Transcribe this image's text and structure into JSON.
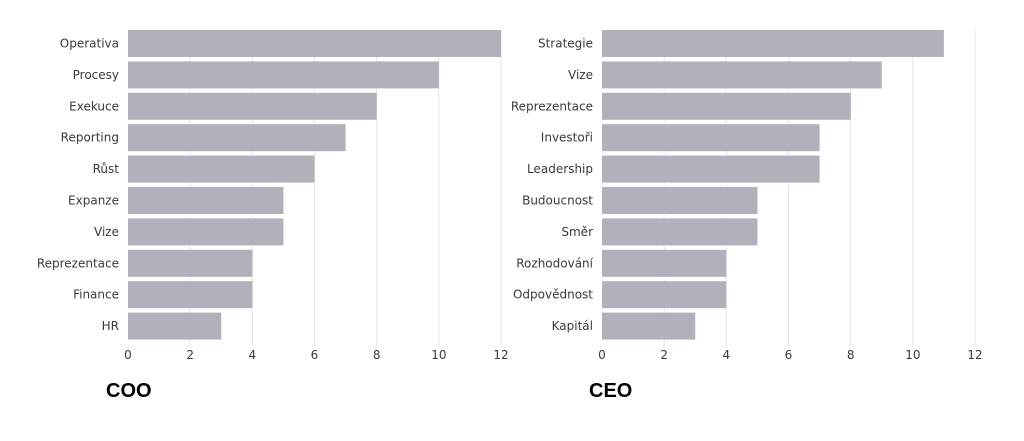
{
  "chart_data": [
    {
      "type": "bar",
      "orientation": "horizontal",
      "title": "COO",
      "categories": [
        "Operativa",
        "Procesy",
        "Exekuce",
        "Reporting",
        "Růst",
        "Expanze",
        "Vize",
        "Reprezentace",
        "Finance",
        "HR"
      ],
      "values": [
        12,
        10,
        8,
        7,
        6,
        5,
        5,
        4,
        4,
        3
      ],
      "xlim": [
        0,
        12
      ],
      "xticks": [
        0,
        2,
        4,
        6,
        8,
        10,
        12
      ],
      "grid": true
    },
    {
      "type": "bar",
      "orientation": "horizontal",
      "title": "CEO",
      "categories": [
        "Strategie",
        "Vize",
        "Reprezentace",
        "Investoři",
        "Leadership",
        "Budoucnost",
        "Směr",
        "Rozhodování",
        "Odpovědnost",
        "Kapitál"
      ],
      "values": [
        11,
        9,
        8,
        7,
        7,
        5,
        5,
        4,
        4,
        3
      ],
      "xlim": [
        0,
        12
      ],
      "xticks": [
        0,
        2,
        4,
        6,
        8,
        10,
        12
      ],
      "grid": true
    }
  ],
  "colors": {
    "bar": "#b2b1bb",
    "grid": "#e6e6e6",
    "text": "#3a3a3a"
  }
}
